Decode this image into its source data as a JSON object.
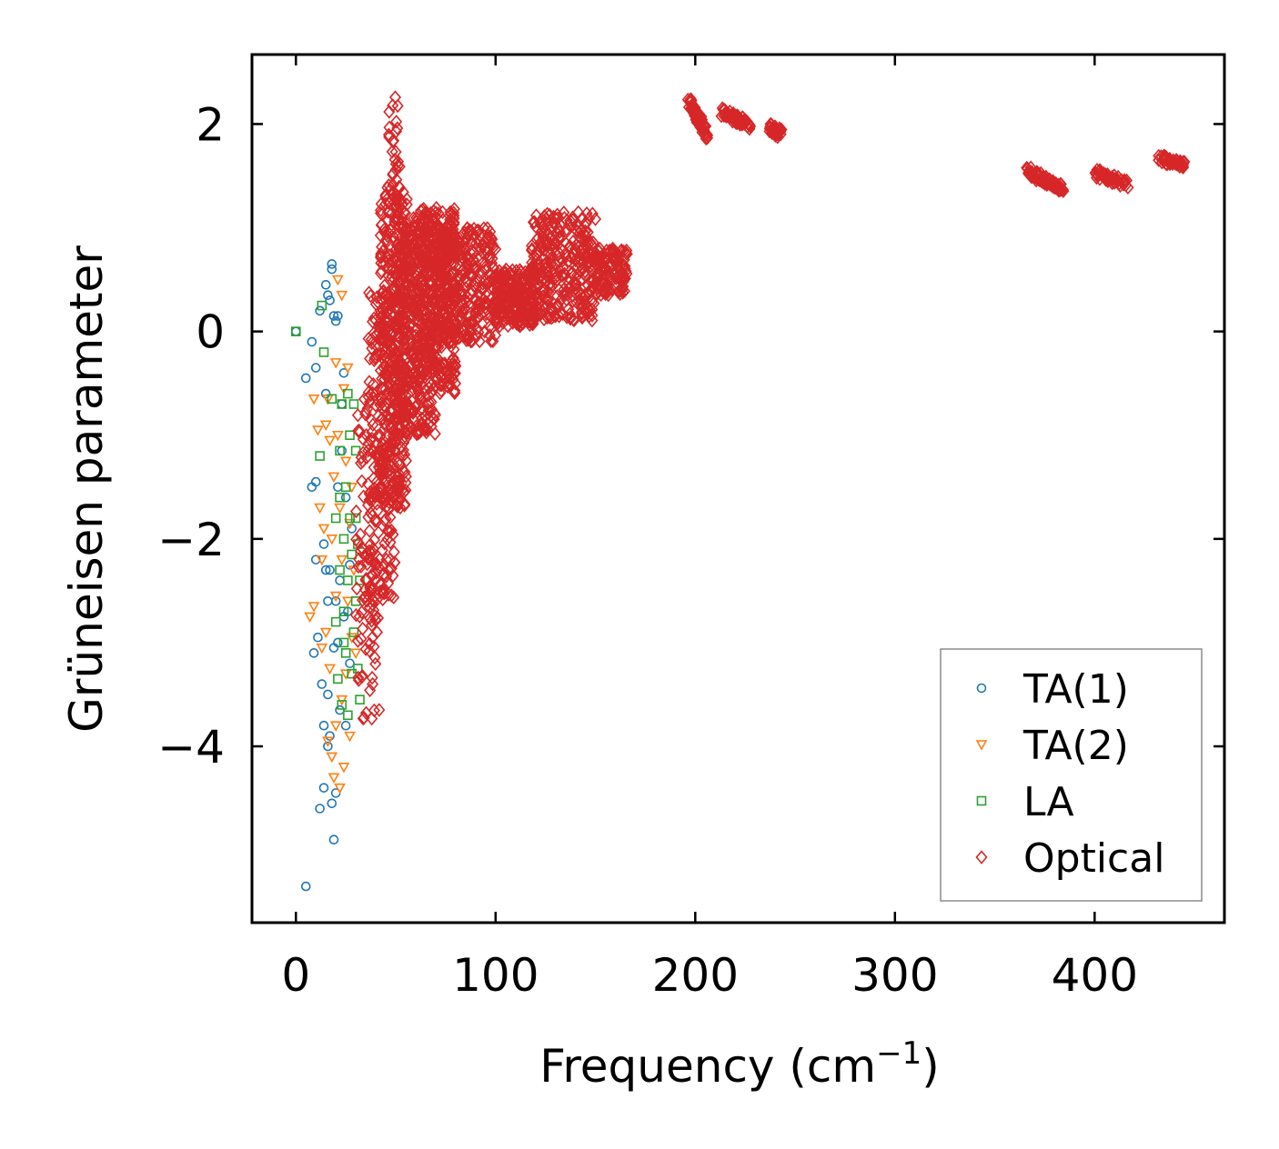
{
  "chart_data": {
    "type": "scatter",
    "title": "",
    "xlabel": "Frequency (cm",
    "xlabel_sup": "−1",
    "xlabel_close": ")",
    "ylabel": "Grüneisen parameter",
    "xlim": [
      -22,
      465
    ],
    "ylim": [
      -5.7,
      2.67
    ],
    "xticks": [
      0,
      100,
      200,
      300,
      400
    ],
    "xtick_labels": [
      "0",
      "100",
      "200",
      "300",
      "400"
    ],
    "yticks": [
      2,
      0,
      -2,
      -4
    ],
    "ytick_labels": [
      "2",
      "0",
      "−2",
      "−4"
    ],
    "grid": false,
    "legend_position": "bottom-right",
    "series": [
      {
        "name": "TA(1)",
        "marker": "circle",
        "color": "#1f77b4",
        "points": [
          [
            0,
            0
          ],
          [
            5,
            -5.35
          ],
          [
            5,
            -0.45
          ],
          [
            8,
            -0.1
          ],
          [
            8,
            -1.5
          ],
          [
            9,
            -3.1
          ],
          [
            10,
            -0.35
          ],
          [
            10,
            -1.45
          ],
          [
            10,
            -2.2
          ],
          [
            11,
            -2.95
          ],
          [
            12,
            -4.6
          ],
          [
            12,
            0.2
          ],
          [
            13,
            -3.4
          ],
          [
            14,
            -2.05
          ],
          [
            14,
            -3.8
          ],
          [
            14,
            -4.4
          ],
          [
            15,
            -2.3
          ],
          [
            15,
            0.45
          ],
          [
            15,
            -0.6
          ],
          [
            16,
            -3.5
          ],
          [
            16,
            -4.0
          ],
          [
            16,
            -2.6
          ],
          [
            17,
            0.3
          ],
          [
            17,
            -2.3
          ],
          [
            17,
            -3.9
          ],
          [
            18,
            -4.55
          ],
          [
            18,
            0.6
          ],
          [
            19,
            -3.05
          ],
          [
            19,
            -4.9
          ],
          [
            19,
            0.15
          ],
          [
            20,
            -2.6
          ],
          [
            20,
            0.1
          ],
          [
            20,
            -4.45
          ],
          [
            21,
            -3.0
          ],
          [
            21,
            -1.5
          ],
          [
            22,
            -2.4
          ],
          [
            22,
            -3.65
          ],
          [
            23,
            -1.15
          ],
          [
            23,
            -0.7
          ],
          [
            24,
            -2.75
          ],
          [
            24,
            -0.4
          ],
          [
            25,
            -3.8
          ],
          [
            25,
            -1.6
          ],
          [
            26,
            -2.7
          ],
          [
            27,
            -2.25
          ],
          [
            27,
            -3.2
          ],
          [
            28,
            -1.9
          ],
          [
            16,
            0.35
          ],
          [
            18,
            0.65
          ],
          [
            21,
            0.15
          ]
        ]
      },
      {
        "name": "TA(2)",
        "marker": "triangle-down",
        "color": "#ff7f0e",
        "points": [
          [
            7,
            -2.75
          ],
          [
            9,
            -2.65
          ],
          [
            9,
            -0.65
          ],
          [
            11,
            -0.95
          ],
          [
            12,
            -1.7
          ],
          [
            13,
            -3.05
          ],
          [
            13,
            -2.2
          ],
          [
            14,
            -1.9
          ],
          [
            15,
            -0.9
          ],
          [
            15,
            -2.9
          ],
          [
            16,
            -0.65
          ],
          [
            16,
            -3.95
          ],
          [
            17,
            -3.25
          ],
          [
            17,
            -1.05
          ],
          [
            18,
            -2.0
          ],
          [
            18,
            -4.1
          ],
          [
            19,
            -1.4
          ],
          [
            20,
            -0.3
          ],
          [
            20,
            -2.55
          ],
          [
            20,
            -3.8
          ],
          [
            21,
            -1.0
          ],
          [
            21,
            0.5
          ],
          [
            22,
            -1.7
          ],
          [
            22,
            -4.4
          ],
          [
            23,
            -3.55
          ],
          [
            23,
            -2.2
          ],
          [
            24,
            -0.55
          ],
          [
            24,
            -4.2
          ],
          [
            25,
            -1.25
          ],
          [
            25,
            -3.3
          ],
          [
            26,
            -0.35
          ],
          [
            26,
            -2.6
          ],
          [
            27,
            -1.85
          ],
          [
            27,
            -3.9
          ],
          [
            28,
            -2.95
          ],
          [
            28,
            -1.5
          ],
          [
            29,
            -2.3
          ],
          [
            30,
            -3.1
          ],
          [
            23,
            0.35
          ],
          [
            19,
            -4.3
          ]
        ]
      },
      {
        "name": "LA",
        "marker": "square",
        "color": "#2ca02c",
        "points": [
          [
            0,
            0
          ],
          [
            12,
            -1.2
          ],
          [
            13,
            0.25
          ],
          [
            14,
            -0.2
          ],
          [
            18,
            -0.65
          ],
          [
            20,
            -2.8
          ],
          [
            20,
            -1.8
          ],
          [
            21,
            -3.35
          ],
          [
            22,
            -2.3
          ],
          [
            22,
            -1.15
          ],
          [
            23,
            -0.7
          ],
          [
            23,
            -3.6
          ],
          [
            24,
            -2.0
          ],
          [
            24,
            -2.7
          ],
          [
            25,
            -1.5
          ],
          [
            25,
            -3.1
          ],
          [
            26,
            -0.6
          ],
          [
            26,
            -2.4
          ],
          [
            26,
            -3.7
          ],
          [
            27,
            -1.0
          ],
          [
            27,
            -1.8
          ],
          [
            28,
            -2.15
          ],
          [
            28,
            -3.3
          ],
          [
            29,
            -0.7
          ],
          [
            29,
            -2.9
          ],
          [
            30,
            -1.15
          ],
          [
            30,
            -1.8
          ],
          [
            30,
            -2.6
          ],
          [
            31,
            -2.05
          ],
          [
            31,
            -3.25
          ],
          [
            32,
            -2.4
          ],
          [
            32,
            -3.55
          ],
          [
            22,
            -1.6
          ],
          [
            24,
            -3.0
          ]
        ]
      },
      {
        "name": "Optical",
        "marker": "diamond",
        "color": "#d62728",
        "clusters": [
          {
            "x": [
              30,
              42
            ],
            "y": [
              -3.75,
              -0.6
            ],
            "n": 110
          },
          {
            "x": [
              36,
              50
            ],
            "y": [
              -2.6,
              0.4
            ],
            "n": 200
          },
          {
            "x": [
              42,
              56
            ],
            "y": [
              -1.7,
              1.4
            ],
            "n": 350
          },
          {
            "x": [
              46,
              52
            ],
            "y": [
              1.2,
              2.3
            ],
            "n": 35
          },
          {
            "x": [
              50,
              70
            ],
            "y": [
              -1.0,
              1.1
            ],
            "n": 420
          },
          {
            "x": [
              60,
              80
            ],
            "y": [
              -0.6,
              1.2
            ],
            "n": 300
          },
          {
            "x": [
              70,
              100
            ],
            "y": [
              -0.1,
              1.0
            ],
            "n": 350
          },
          {
            "x": [
              100,
              120
            ],
            "y": [
              0.05,
              0.6
            ],
            "n": 230
          },
          {
            "x": [
              118,
              150
            ],
            "y": [
              0.1,
              1.15
            ],
            "n": 320
          },
          {
            "x": [
              150,
              166
            ],
            "y": [
              0.35,
              0.8
            ],
            "n": 120
          }
        ],
        "bands": [
          {
            "from": [
              197,
              2.22
            ],
            "to": [
              206,
              1.88
            ],
            "n": 70
          },
          {
            "from": [
              213,
              2.12
            ],
            "to": [
              228,
              1.98
            ],
            "n": 60
          },
          {
            "from": [
              237,
              1.98
            ],
            "to": [
              243,
              1.9
            ],
            "n": 30
          },
          {
            "from": [
              366,
              1.55
            ],
            "to": [
              384,
              1.38
            ],
            "n": 70
          },
          {
            "from": [
              400,
              1.53
            ],
            "to": [
              416,
              1.42
            ],
            "n": 55
          },
          {
            "from": [
              432,
              1.68
            ],
            "to": [
              444,
              1.6
            ],
            "n": 45
          }
        ]
      }
    ]
  }
}
